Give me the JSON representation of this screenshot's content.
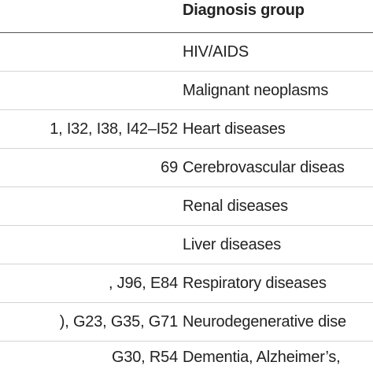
{
  "table": {
    "header": {
      "codes": "",
      "group": "Diagnosis group"
    },
    "rows": [
      {
        "codes": "",
        "group": "HIV/AIDS"
      },
      {
        "codes": "",
        "group": "Malignant neoplasms"
      },
      {
        "codes": "1, I32, I38, I42–I52",
        "group": "Heart diseases"
      },
      {
        "codes": "69",
        "group": "Cerebrovascular diseas"
      },
      {
        "codes": "",
        "group": "Renal diseases"
      },
      {
        "codes": "",
        "group": "Liver diseases"
      },
      {
        "codes": ", J96, E84",
        "group": "Respiratory diseases"
      },
      {
        "codes": "), G23, G35, G71",
        "group": "Neurodegenerative dise"
      },
      {
        "codes": "G30, R54",
        "group": "Dementia, Alzheimer’s,"
      }
    ]
  }
}
